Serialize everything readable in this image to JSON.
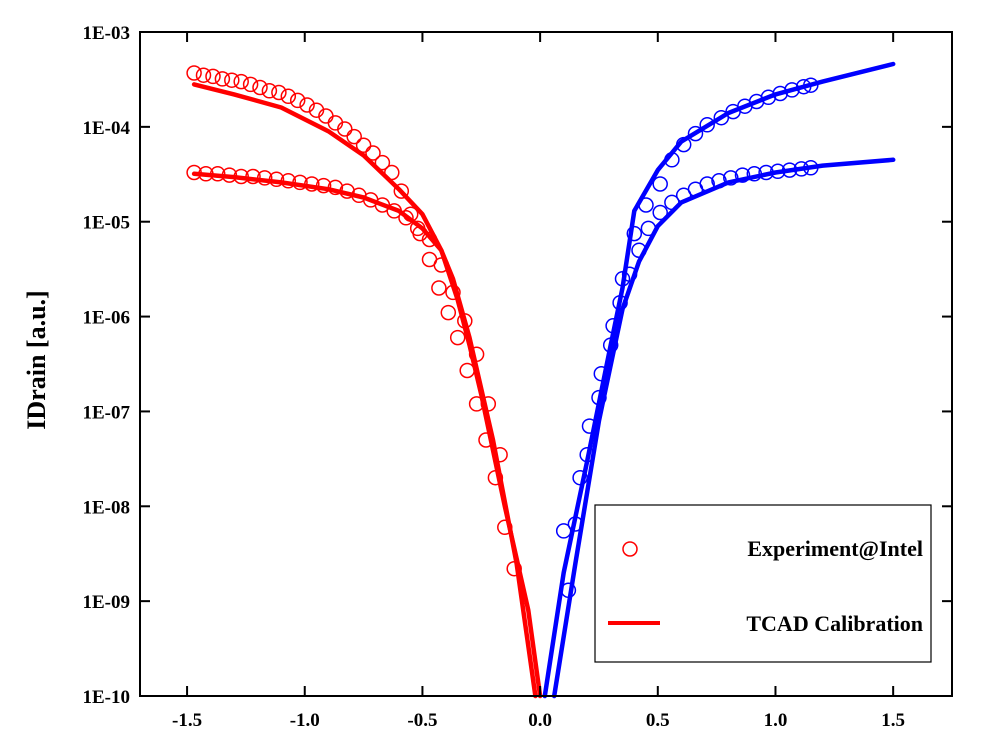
{
  "chart_data": {
    "type": "line",
    "title": "",
    "xlabel": "",
    "ylabel": "IDrain [a.u.]",
    "yscale": "log",
    "xlim": [
      -1.7,
      1.75
    ],
    "ylim": [
      1e-10,
      0.001
    ],
    "x_ticks": [
      {
        "value": -1.5,
        "label": "-1.5"
      },
      {
        "value": -1.0,
        "label": "-1.0"
      },
      {
        "value": -0.5,
        "label": "-0.5"
      },
      {
        "value": 0.0,
        "label": "0.0"
      },
      {
        "value": 0.5,
        "label": "0.5"
      },
      {
        "value": 1.0,
        "label": "1.0"
      },
      {
        "value": 1.5,
        "label": "1.5"
      }
    ],
    "y_ticks": [
      {
        "value": 0.001,
        "label": "1E-03"
      },
      {
        "value": 0.0001,
        "label": "1E-04"
      },
      {
        "value": 1e-05,
        "label": "1E-05"
      },
      {
        "value": 1e-06,
        "label": "1E-06"
      },
      {
        "value": 1e-07,
        "label": "1E-07"
      },
      {
        "value": 1e-08,
        "label": "1E-08"
      },
      {
        "value": 1e-09,
        "label": "1E-09"
      },
      {
        "value": 1e-10,
        "label": "1E-10"
      }
    ],
    "grid": false,
    "legend": {
      "placement": "bottom-right",
      "entries": [
        {
          "label": "Experiment@Intel",
          "style": "marker"
        },
        {
          "label": "TCAD Calibration",
          "style": "line"
        }
      ]
    },
    "colors": {
      "pmos": "#ff0000",
      "nmos": "#0000ff"
    },
    "series": [
      {
        "kind": "line",
        "color": "#ff0000",
        "x": [
          -1.47,
          -1.3,
          -1.1,
          -0.9,
          -0.75,
          -0.6,
          -0.5,
          -0.42,
          -0.35,
          -0.3,
          -0.25,
          -0.15,
          -0.05,
          -0.0
        ],
        "y": [
          0.00028,
          0.00022,
          0.00016,
          9e-05,
          5e-05,
          2.2e-05,
          1.2e-05,
          5e-06,
          1.5e-06,
          5e-07,
          1.5e-07,
          1e-08,
          8e-10,
          1e-10
        ]
      },
      {
        "kind": "line",
        "color": "#ff0000",
        "x": [
          -1.47,
          -1.3,
          -1.1,
          -0.9,
          -0.75,
          -0.6,
          -0.5,
          -0.42,
          -0.37,
          -0.3,
          -0.2,
          -0.1,
          -0.02
        ],
        "y": [
          3.2e-05,
          2.95e-05,
          2.6e-05,
          2.2e-05,
          1.8e-05,
          1.3e-05,
          8.5e-06,
          5e-06,
          2.5e-06,
          6e-07,
          5e-08,
          2.5e-09,
          1e-10
        ]
      },
      {
        "kind": "line",
        "color": "#0000ff",
        "x": [
          0.02,
          0.1,
          0.2,
          0.3,
          0.35,
          0.4,
          0.5,
          0.6,
          0.8,
          1.0,
          1.2,
          1.5
        ],
        "y": [
          1e-10,
          2e-09,
          3e-08,
          5e-07,
          2e-06,
          1.3e-05,
          3.5e-05,
          7e-05,
          0.00014,
          0.00022,
          0.0003,
          0.00046
        ]
      },
      {
        "kind": "line",
        "color": "#0000ff",
        "x": [
          0.06,
          0.15,
          0.25,
          0.35,
          0.42,
          0.5,
          0.6,
          0.8,
          1.0,
          1.2,
          1.5
        ],
        "y": [
          1e-10,
          2.5e-09,
          8e-08,
          1.2e-06,
          3.8e-06,
          9e-06,
          1.6e-05,
          2.6e-05,
          3.3e-05,
          3.9e-05,
          4.5e-05
        ]
      },
      {
        "kind": "marker",
        "color": "#ff0000",
        "x": [
          -1.47,
          -1.43,
          -1.39,
          -1.35,
          -1.31,
          -1.27,
          -1.23,
          -1.19,
          -1.15,
          -1.11,
          -1.07,
          -1.03,
          -0.99,
          -0.95,
          -0.91,
          -0.87,
          -0.83,
          -0.79,
          -0.75,
          -0.71,
          -0.67,
          -0.63,
          -0.59,
          -0.55,
          -0.51,
          -0.47,
          -0.43,
          -0.39,
          -0.35,
          -0.31,
          -0.27,
          -0.23,
          -0.19,
          -0.15,
          -0.11
        ],
        "y": [
          0.00037,
          0.00035,
          0.00034,
          0.00032,
          0.00031,
          0.0003,
          0.00028,
          0.00026,
          0.00024,
          0.00023,
          0.00021,
          0.00019,
          0.00017,
          0.00015,
          0.00013,
          0.00011,
          9.5e-05,
          7.9e-05,
          6.4e-05,
          5.3e-05,
          4.2e-05,
          3.3e-05,
          2.1e-05,
          1.2e-05,
          7.5e-06,
          4e-06,
          2e-06,
          1.1e-06,
          6e-07,
          2.7e-07,
          1.2e-07,
          5e-08,
          2e-08,
          6e-09,
          2.2e-09
        ]
      },
      {
        "kind": "marker",
        "color": "#ff0000",
        "x": [
          -1.47,
          -1.42,
          -1.37,
          -1.32,
          -1.27,
          -1.22,
          -1.17,
          -1.12,
          -1.07,
          -1.02,
          -0.97,
          -0.92,
          -0.87,
          -0.82,
          -0.77,
          -0.72,
          -0.67,
          -0.62,
          -0.57,
          -0.52,
          -0.47,
          -0.42,
          -0.37,
          -0.32,
          -0.27,
          -0.22,
          -0.17
        ],
        "y": [
          3.3e-05,
          3.2e-05,
          3.2e-05,
          3.1e-05,
          3e-05,
          3e-05,
          2.9e-05,
          2.8e-05,
          2.7e-05,
          2.6e-05,
          2.5e-05,
          2.4e-05,
          2.3e-05,
          2.1e-05,
          1.9e-05,
          1.7e-05,
          1.5e-05,
          1.3e-05,
          1.1e-05,
          8.5e-06,
          6.5e-06,
          3.5e-06,
          1.8e-06,
          9e-07,
          4e-07,
          1.2e-07,
          3.5e-08
        ]
      },
      {
        "kind": "marker",
        "color": "#0000ff",
        "x": [
          0.12,
          0.17,
          0.21,
          0.26,
          0.31,
          0.35,
          0.4,
          0.45,
          0.51,
          0.56,
          0.61,
          0.66,
          0.71,
          0.77,
          0.82,
          0.87,
          0.92,
          0.97,
          1.02,
          1.07,
          1.12,
          1.15
        ],
        "y": [
          1.3e-09,
          2e-08,
          7e-08,
          2.5e-07,
          8e-07,
          2.5e-06,
          7.5e-06,
          1.5e-05,
          2.5e-05,
          4.5e-05,
          6.5e-05,
          8.5e-05,
          0.000105,
          0.000125,
          0.000145,
          0.000165,
          0.000185,
          0.000205,
          0.000225,
          0.000245,
          0.000265,
          0.000275
        ]
      },
      {
        "kind": "marker",
        "color": "#0000ff",
        "x": [
          0.1,
          0.15,
          0.2,
          0.25,
          0.3,
          0.34,
          0.38,
          0.42,
          0.46,
          0.51,
          0.56,
          0.61,
          0.66,
          0.71,
          0.76,
          0.81,
          0.86,
          0.91,
          0.96,
          1.01,
          1.06,
          1.11,
          1.15
        ],
        "y": [
          5.5e-09,
          6.5e-09,
          3.5e-08,
          1.4e-07,
          5e-07,
          1.4e-06,
          2.8e-06,
          5e-06,
          8.5e-06,
          1.25e-05,
          1.6e-05,
          1.9e-05,
          2.2e-05,
          2.5e-05,
          2.7e-05,
          2.9e-05,
          3.1e-05,
          3.2e-05,
          3.3e-05,
          3.4e-05,
          3.5e-05,
          3.6e-05,
          3.7e-05
        ]
      }
    ]
  }
}
